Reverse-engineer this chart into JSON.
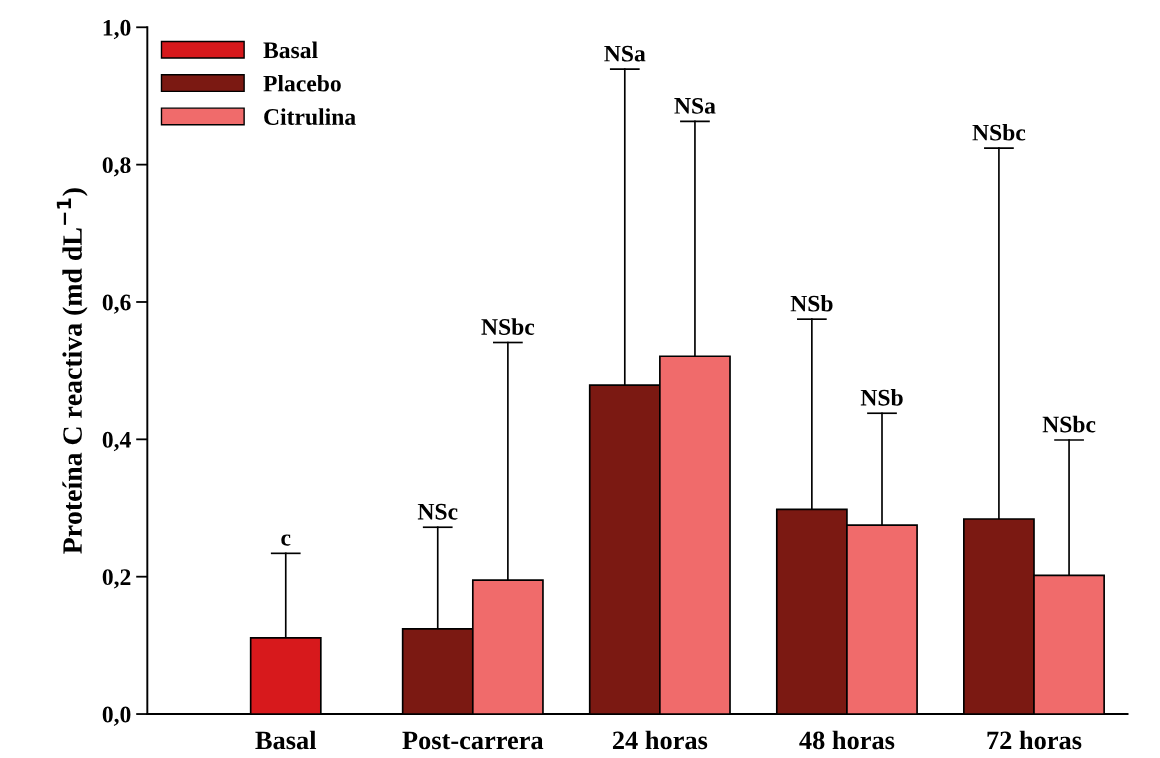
{
  "chart_data": {
    "type": "bar",
    "ylabel": "Proteína C reactiva (md dL$^{−1}$)",
    "categories": [
      "Basal",
      "Post-carrera",
      "24 horas",
      "48 horas",
      "72 horas"
    ],
    "series": [
      {
        "name": "Basal",
        "color": "#d7191c",
        "values": [
          0.111,
          null,
          null,
          null,
          null
        ],
        "errors": [
          [
            0.111,
            0.234
          ],
          null,
          null,
          null,
          null
        ]
      },
      {
        "name": "Placebo",
        "color": "#7b1912",
        "values": [
          null,
          0.124,
          0.479,
          0.298,
          0.284
        ],
        "errors": [
          null,
          [
            0.124,
            0.272
          ],
          [
            0.479,
            0.939
          ],
          [
            0.298,
            0.575
          ],
          [
            0.284,
            0.824
          ]
        ]
      },
      {
        "name": "Citrulina",
        "color": "#f06b6b",
        "values": [
          null,
          0.195,
          0.521,
          0.275,
          0.202
        ],
        "errors": [
          null,
          [
            0.195,
            0.541
          ],
          [
            0.521,
            0.863
          ],
          [
            0.275,
            0.438
          ],
          [
            0.202,
            0.399
          ]
        ]
      }
    ],
    "ylim": [
      0,
      1
    ],
    "yticks": [
      {
        "value": 0,
        "label": "0,0"
      },
      {
        "value": 0.2,
        "label": "0,2"
      },
      {
        "value": 0.4,
        "label": "0,4"
      },
      {
        "value": 0.6,
        "label": "0,6"
      },
      {
        "value": 0.8,
        "label": "0,8"
      },
      {
        "value": 1,
        "label": "1,0"
      }
    ],
    "annotations": [
      "c",
      "NSc",
      "NSbc",
      "NSa",
      "NSa",
      "NSb",
      "NSb",
      "NSbc",
      "NSbc"
    ],
    "grid": false,
    "legend": "top left"
  }
}
